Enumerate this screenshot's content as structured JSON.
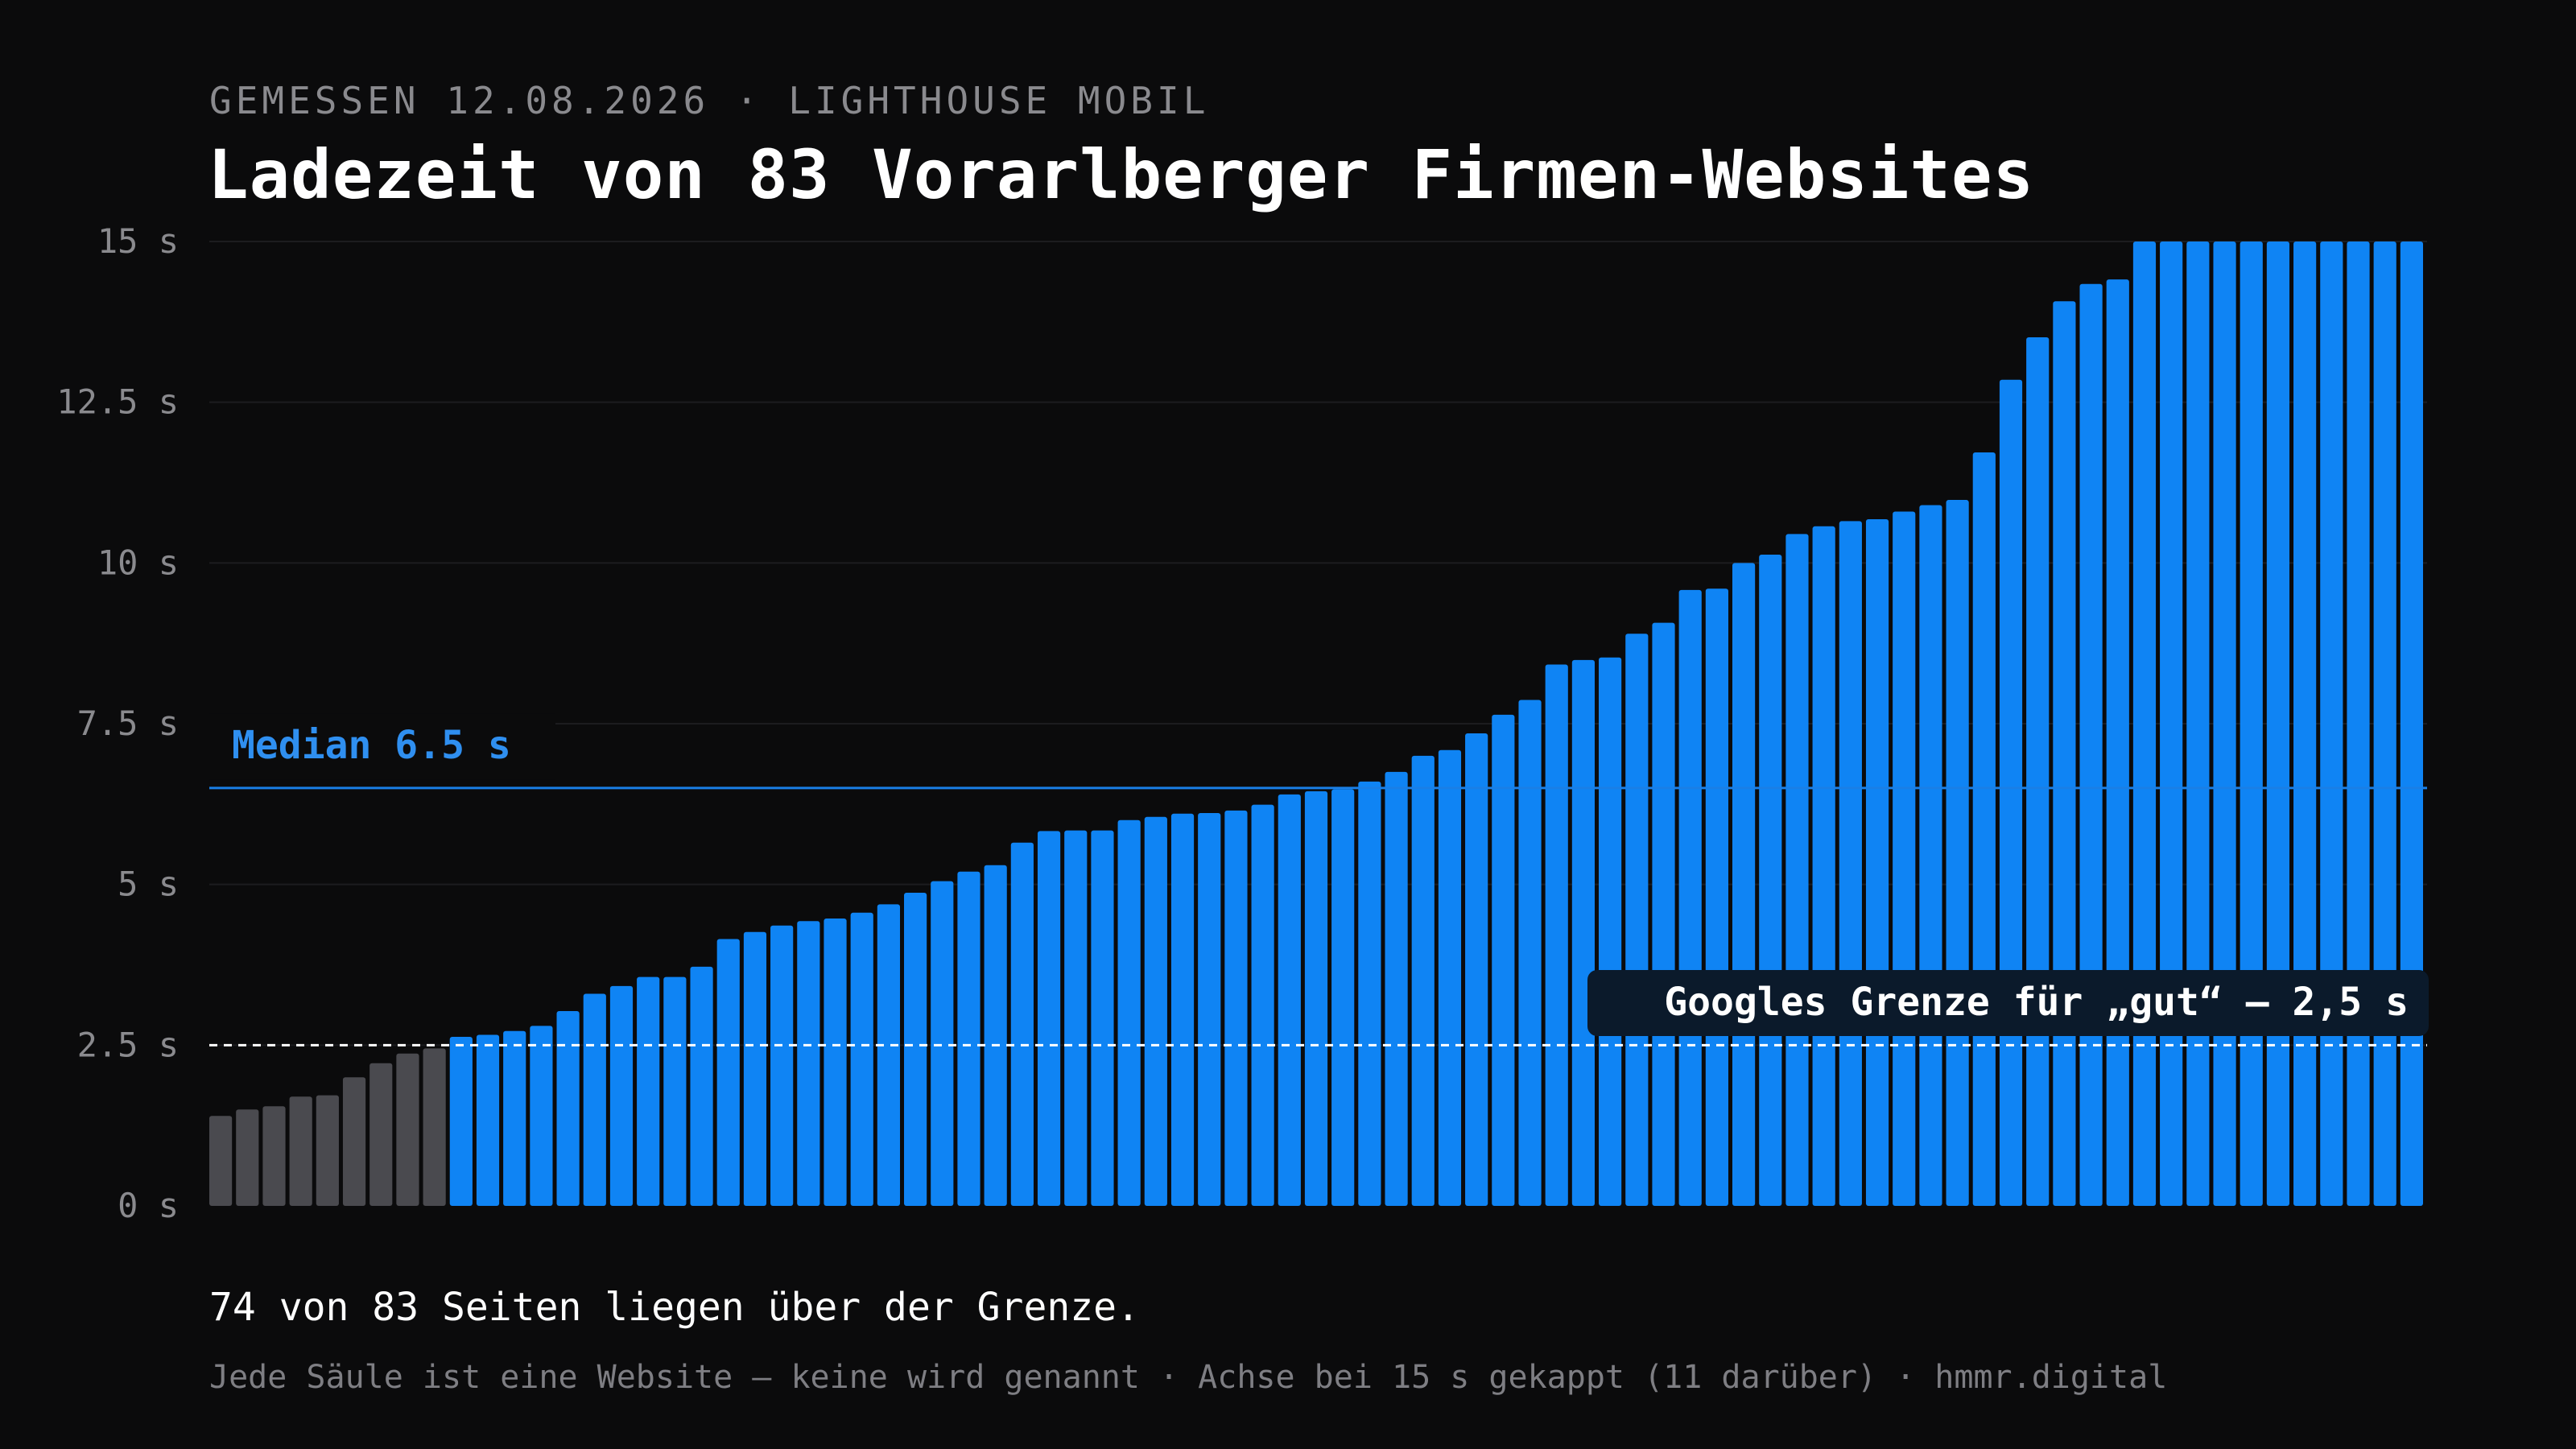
{
  "header": {
    "subtitle": "GEMESSEN 12.08.2026 · LIGHTHOUSE MOBIL",
    "title": "Ladezeit von 83 Vorarlberger Firmen-Websites"
  },
  "chart_data": {
    "type": "bar",
    "y_unit": "s",
    "ylim": [
      0,
      15
    ],
    "yticks": [
      0,
      2.5,
      5,
      7.5,
      10,
      12.5,
      15
    ],
    "ytick_labels": [
      "0 s",
      "2.5 s",
      "5 s",
      "7.5 s",
      "10 s",
      "12.5 s",
      "15 s"
    ],
    "grid": true,
    "cap_value": 15,
    "values": [
      1.4,
      1.5,
      1.55,
      1.7,
      1.72,
      2.0,
      2.22,
      2.37,
      2.45,
      2.63,
      2.66,
      2.72,
      2.8,
      3.03,
      3.3,
      3.42,
      3.56,
      3.56,
      3.72,
      4.15,
      4.26,
      4.36,
      4.43,
      4.47,
      4.56,
      4.69,
      4.87,
      5.05,
      5.2,
      5.3,
      5.65,
      5.83,
      5.84,
      5.84,
      6.0,
      6.05,
      6.1,
      6.11,
      6.15,
      6.24,
      6.4,
      6.45,
      6.48,
      6.6,
      6.75,
      7.0,
      7.09,
      7.35,
      7.64,
      7.87,
      8.42,
      8.49,
      8.53,
      8.9,
      9.07,
      9.58,
      9.6,
      10.0,
      10.13,
      10.45,
      10.57,
      10.65,
      10.68,
      10.8,
      10.9,
      10.98,
      11.72,
      12.85,
      13.51,
      14.07,
      14.34,
      14.41,
      15,
      15,
      15,
      15,
      15,
      15,
      15,
      15,
      15,
      15,
      15
    ],
    "good_threshold": 2.5,
    "median": 6.5,
    "median_label": "Median 6.5 s",
    "threshold_label": "Googles Grenze für „gut“ – 2,5 s",
    "colors": {
      "below_threshold": "#4a4a4f",
      "above_threshold": "#0f84f4",
      "median_line": "#1a7fe6",
      "median_label": "#2f8ff0",
      "threshold_line": "#ffffff",
      "gridline": "#1c1c1f",
      "tick_label": "#8a8a8e",
      "threshold_label_bg": "#0b1a2b"
    }
  },
  "footer": {
    "summary": "74 von 83 Seiten liegen über der Grenze.",
    "note": "Jede Säule ist eine Website – keine wird genannt · Achse bei 15 s gekappt (11 darüber) · hmmr.digital"
  }
}
